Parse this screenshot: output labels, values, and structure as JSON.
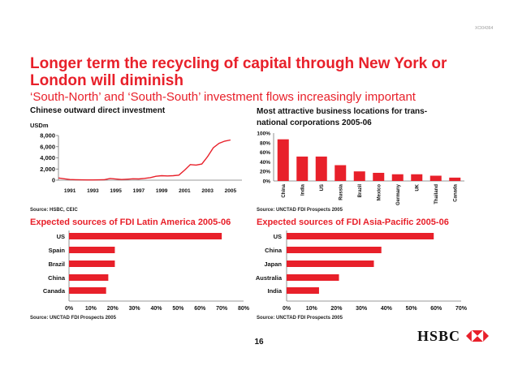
{
  "slide": {
    "doc_code": "XCI04364",
    "title": "Longer term the recycling of capital through New York or London will diminish",
    "subtitle": "‘South-North’ and ‘South-South’ investment flows increasingly important",
    "page_number": "16",
    "logo_text": "HSBC",
    "accent_color": "#e8202a"
  },
  "chart_data": [
    {
      "type": "line",
      "title": "Chinese outward direct investment",
      "ylabel": "USDm",
      "ylim": [
        0,
        8000
      ],
      "yticks": [
        "8,000",
        "6,000",
        "4,000",
        "2,000",
        "0"
      ],
      "ytick_values": [
        8000,
        6000,
        4000,
        2000,
        0
      ],
      "xticks": [
        "1991",
        "1993",
        "1995",
        "1997",
        "1999",
        "2001",
        "2003",
        "2005"
      ],
      "xtick_values": [
        1991,
        1993,
        1995,
        1997,
        1999,
        2001,
        2003,
        2005
      ],
      "xlim": [
        1990,
        2006
      ],
      "series": [
        {
          "color": "#e8202a",
          "x": [
            1990.0,
            1990.5,
            1991.0,
            1991.5,
            1992.0,
            1992.5,
            1993.0,
            1993.5,
            1994.0,
            1994.5,
            1995.0,
            1995.5,
            1996.0,
            1996.5,
            1997.0,
            1997.5,
            1998.0,
            1998.5,
            1999.0,
            1999.5,
            2000.0,
            2000.5,
            2001.0,
            2001.5,
            2002.0,
            2002.5,
            2003.0,
            2003.5,
            2004.0,
            2004.5,
            2005.0
          ],
          "values": [
            400,
            250,
            120,
            80,
            60,
            50,
            40,
            60,
            80,
            300,
            200,
            120,
            180,
            250,
            220,
            320,
            450,
            700,
            800,
            750,
            800,
            900,
            1800,
            2800,
            2700,
            2900,
            4200,
            5800,
            6600,
            7000,
            7200
          ]
        }
      ],
      "source": "Source: HSBC, CEIC"
    },
    {
      "type": "bar",
      "title": "Most attractive business locations for trans-national corporations 2005-06",
      "categories": [
        "China",
        "India",
        "US",
        "Russia",
        "Brazil",
        "Mexico",
        "Germany",
        "UK",
        "Thailand",
        "Canada"
      ],
      "values": [
        87,
        51,
        51,
        33,
        20,
        17,
        14,
        14,
        11,
        7
      ],
      "ylim": [
        0,
        100
      ],
      "yticks": [
        "100%",
        "80%",
        "60%",
        "40%",
        "20%",
        "0%"
      ],
      "ytick_values": [
        100,
        80,
        60,
        40,
        20,
        0
      ],
      "color": "#e8202a",
      "source": "Source: UNCTAD FDI Prospects 2005"
    },
    {
      "type": "bar",
      "orientation": "horizontal",
      "title": "Expected sources of FDI Latin America 2005-06",
      "categories": [
        "US",
        "Spain",
        "Brazil",
        "China",
        "Canada"
      ],
      "values": [
        70,
        21,
        21,
        18,
        17
      ],
      "xlim": [
        0,
        80
      ],
      "xticks": [
        "0%",
        "10%",
        "20%",
        "30%",
        "40%",
        "50%",
        "60%",
        "70%",
        "80%"
      ],
      "xtick_values": [
        0,
        10,
        20,
        30,
        40,
        50,
        60,
        70,
        80
      ],
      "color": "#e8202a",
      "source": "Source: UNCTAD FDI Prospects 2005"
    },
    {
      "type": "bar",
      "orientation": "horizontal",
      "title": "Expected sources of FDI Asia-Pacific 2005-06",
      "categories": [
        "US",
        "China",
        "Japan",
        "Australia",
        "India"
      ],
      "values": [
        59,
        38,
        35,
        21,
        13
      ],
      "xlim": [
        0,
        70
      ],
      "xticks": [
        "0%",
        "10%",
        "20%",
        "30%",
        "40%",
        "50%",
        "60%",
        "70%"
      ],
      "xtick_values": [
        0,
        10,
        20,
        30,
        40,
        50,
        60,
        70
      ],
      "color": "#e8202a",
      "source": "Source: UNCTAD FDI Prospects 2005"
    }
  ]
}
